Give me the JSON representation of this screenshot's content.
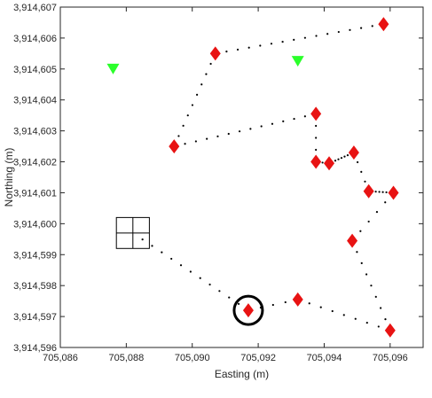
{
  "chart_data": {
    "type": "scatter",
    "title": "",
    "xlabel": "Easting (m)",
    "ylabel": "Northing (m)",
    "xlim": [
      705086,
      705097
    ],
    "ylim": [
      3914596,
      3914607
    ],
    "xticks": [
      705086,
      705088,
      705090,
      705092,
      705094,
      705096
    ],
    "yticks": [
      3914596,
      3914597,
      3914598,
      3914599,
      3914600,
      3914601,
      3914602,
      3914603,
      3914604,
      3914605,
      3914606,
      3914607
    ],
    "xtick_labels": [
      "705,086",
      "705,088",
      "705,090",
      "705,092",
      "705,094",
      "705,096"
    ],
    "ytick_labels": [
      "3,914,596",
      "3,914,597",
      "3,914,598",
      "3,914,599",
      "3,914,600",
      "3,914,601",
      "3,914,602",
      "3,914,603",
      "3,914,604",
      "3,914,605",
      "3,914,606",
      "3,914,607"
    ],
    "grid": false,
    "colors": {
      "diamond": "#e81313",
      "triangle": "#2bff2b",
      "path_dots": "#000000",
      "axes": "#262626"
    },
    "diamonds": [
      {
        "x": 705095.8,
        "y": 3914606.45
      },
      {
        "x": 705090.7,
        "y": 3914605.5
      },
      {
        "x": 705093.75,
        "y": 3914603.55
      },
      {
        "x": 705089.45,
        "y": 3914602.5
      },
      {
        "x": 705093.75,
        "y": 3914602.0
      },
      {
        "x": 705094.15,
        "y": 3914601.95
      },
      {
        "x": 705094.9,
        "y": 3914602.3
      },
      {
        "x": 705095.35,
        "y": 3914601.05
      },
      {
        "x": 705096.1,
        "y": 3914601.0
      },
      {
        "x": 705094.85,
        "y": 3914599.45
      },
      {
        "x": 705093.2,
        "y": 3914597.55
      },
      {
        "x": 705091.7,
        "y": 3914597.2
      },
      {
        "x": 705096.0,
        "y": 3914596.55
      }
    ],
    "triangles": [
      {
        "x": 705087.6,
        "y": 3914605.0
      },
      {
        "x": 705093.2,
        "y": 3914605.25
      }
    ],
    "path_segments": [
      [
        [
          705090.7,
          3914605.5
        ],
        [
          705095.8,
          3914606.45
        ]
      ],
      [
        [
          705090.7,
          3914605.5
        ],
        [
          705089.45,
          3914602.5
        ]
      ],
      [
        [
          705089.45,
          3914602.5
        ],
        [
          705093.75,
          3914603.55
        ]
      ],
      [
        [
          705093.75,
          3914603.55
        ],
        [
          705093.75,
          3914602.0
        ]
      ],
      [
        [
          705093.75,
          3914602.0
        ],
        [
          705094.15,
          3914601.95
        ]
      ],
      [
        [
          705094.15,
          3914601.95
        ],
        [
          705094.9,
          3914602.3
        ]
      ],
      [
        [
          705094.9,
          3914602.3
        ],
        [
          705095.35,
          3914601.05
        ]
      ],
      [
        [
          705095.35,
          3914601.05
        ],
        [
          705096.1,
          3914601.0
        ]
      ],
      [
        [
          705096.1,
          3914601.0
        ],
        [
          705094.85,
          3914599.45
        ]
      ],
      [
        [
          705094.85,
          3914599.45
        ],
        [
          705096.0,
          3914596.55
        ]
      ],
      [
        [
          705096.0,
          3914596.55
        ],
        [
          705093.2,
          3914597.55
        ]
      ],
      [
        [
          705093.2,
          3914597.55
        ],
        [
          705091.7,
          3914597.2
        ]
      ],
      [
        [
          705091.7,
          3914597.2
        ],
        [
          705088.2,
          3914599.7
        ]
      ]
    ],
    "grid_square": {
      "cx": 705088.2,
      "cy": 3914599.7,
      "half_x": 0.5,
      "half_y": 0.5
    },
    "circle_marker": {
      "cx": 705091.7,
      "cy": 3914597.2
    }
  }
}
